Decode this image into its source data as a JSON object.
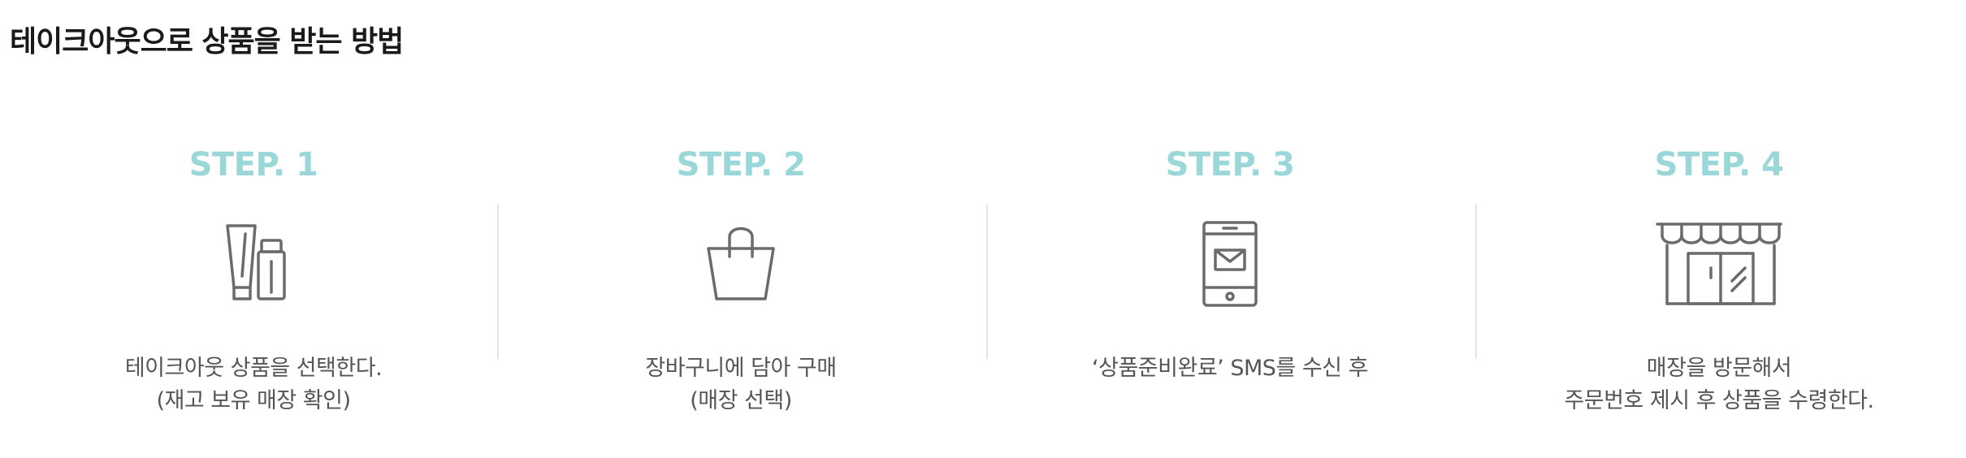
{
  "page": {
    "title": "테이크아웃으로 상품을 받는 방법"
  },
  "colors": {
    "step_label": "#9ad7d8",
    "icon_stroke": "#6b6b6b",
    "divider": "#e3e3e3",
    "text": "#555555"
  },
  "steps": [
    {
      "label": "STEP. 1",
      "icon": "cosmetics-icon",
      "line1": "테이크아웃 상품을 선택한다.",
      "line2": "(재고 보유 매장 확인)"
    },
    {
      "label": "STEP. 2",
      "icon": "shopping-bag-icon",
      "line1": "장바구니에 담아 구매",
      "line2": "(매장 선택)"
    },
    {
      "label": "STEP. 3",
      "icon": "phone-sms-icon",
      "line1": "‘상품준비완료’ SMS를 수신 후",
      "line2": ""
    },
    {
      "label": "STEP. 4",
      "icon": "store-icon",
      "line1": "매장을 방문해서",
      "line2": "주문번호 제시 후 상품을 수령한다."
    }
  ]
}
